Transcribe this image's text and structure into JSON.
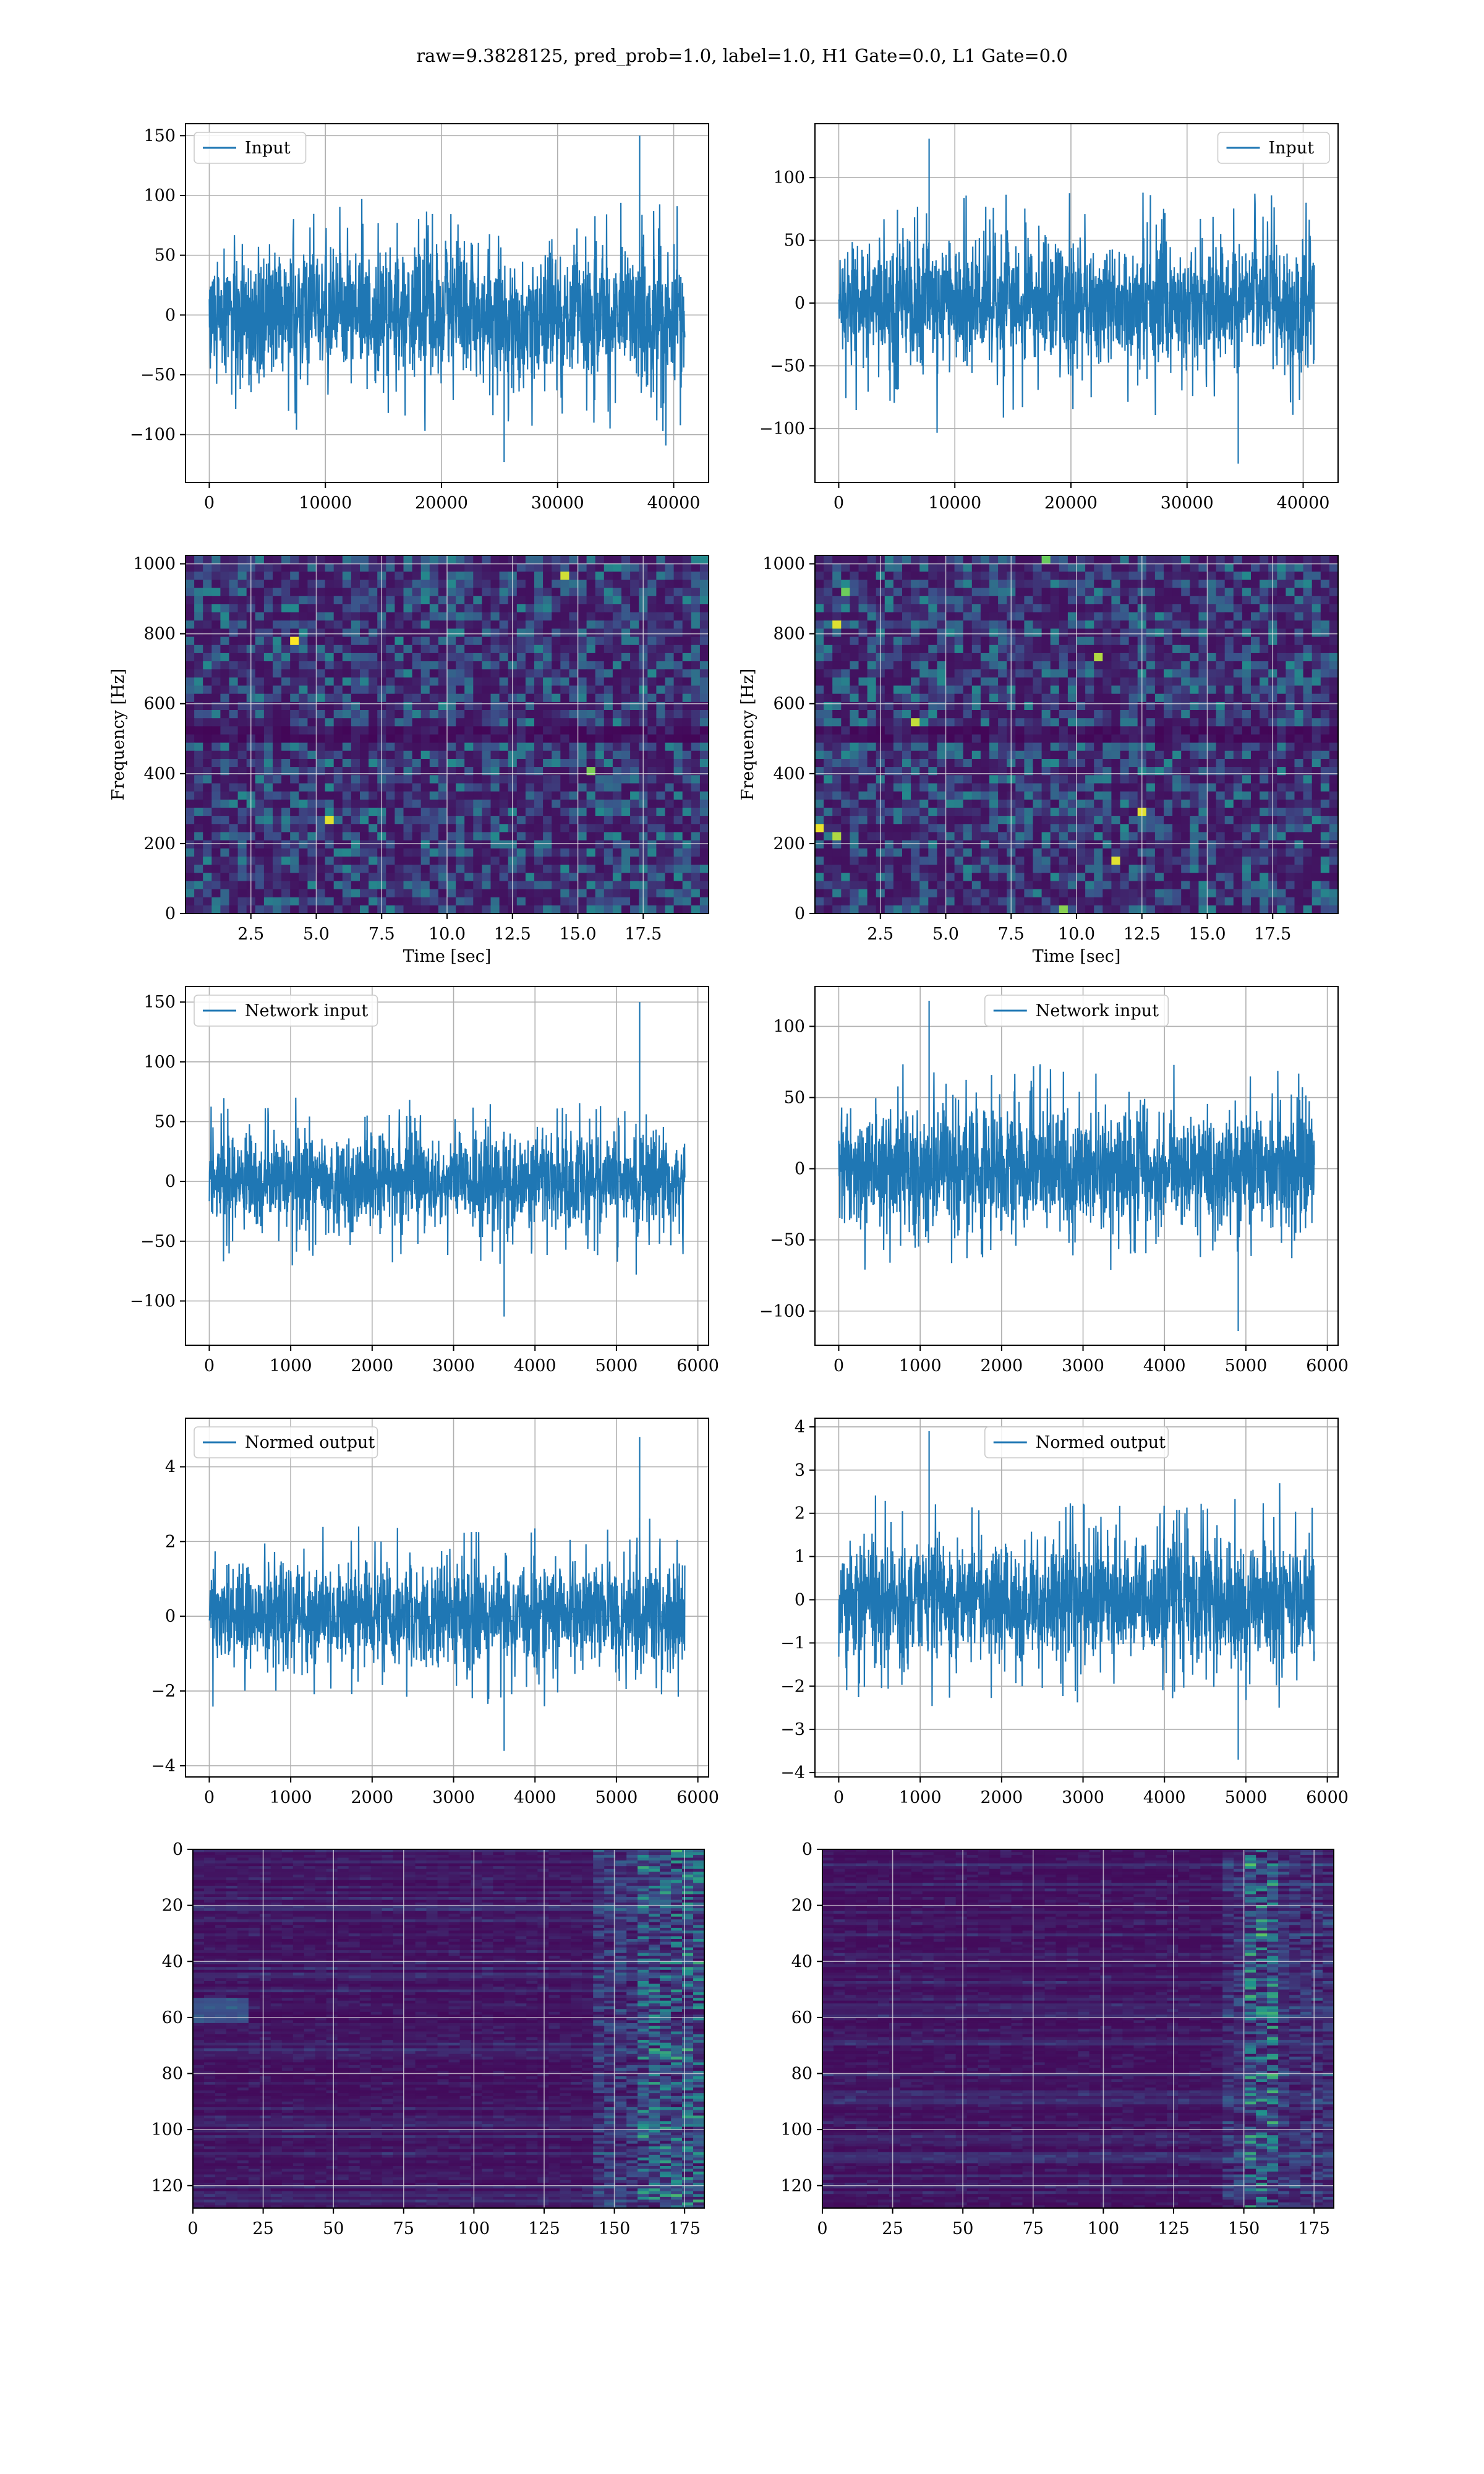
{
  "figure": {
    "title": "raw=9.3828125, pred_prob=1.0, label=1.0, H1 Gate=0.0, L1 Gate=0.0",
    "signal_color": "#1f77b4",
    "grid_color": "#b0b0b0",
    "colormap": "viridis"
  },
  "chart_data": [
    {
      "id": "input-h1",
      "type": "line",
      "series": [
        {
          "name": "Input"
        }
      ],
      "x_range": [
        0,
        40960
      ],
      "amplitude": {
        "typical": 72,
        "negative_max": -123,
        "positive_max": 150
      },
      "xlim": [
        -2048,
        43008
      ],
      "ylim": [
        -140,
        160
      ],
      "xticks": [
        0,
        10000,
        20000,
        30000,
        40000
      ],
      "xtick_labels": [
        "0",
        "10000",
        "20000",
        "30000",
        "40000"
      ],
      "yticks": [
        -100,
        -50,
        0,
        50,
        100,
        150
      ],
      "ytick_labels": [
        "−100",
        "−50",
        "0",
        "50",
        "100",
        "150"
      ],
      "legend": "upper left",
      "grid": true,
      "xlabel": "",
      "ylabel": ""
    },
    {
      "id": "input-l1",
      "type": "line",
      "series": [
        {
          "name": "Input"
        }
      ],
      "x_range": [
        0,
        40960
      ],
      "amplitude": {
        "typical": 68,
        "negative_max": -128,
        "positive_max": 131
      },
      "xlim": [
        -2048,
        43008
      ],
      "ylim": [
        -143,
        143
      ],
      "xticks": [
        0,
        10000,
        20000,
        30000,
        40000
      ],
      "xtick_labels": [
        "0",
        "10000",
        "20000",
        "30000",
        "40000"
      ],
      "yticks": [
        -100,
        -50,
        0,
        50,
        100
      ],
      "ytick_labels": [
        "−100",
        "−50",
        "0",
        "50",
        "100"
      ],
      "legend": "upper right",
      "grid": true,
      "xlabel": "",
      "ylabel": ""
    },
    {
      "id": "spec-h1",
      "type": "heatmap",
      "colormap": "viridis",
      "xlim": [
        0,
        20
      ],
      "ylim": [
        0,
        1024
      ],
      "xticks": [
        2.5,
        5.0,
        7.5,
        10.0,
        12.5,
        15.0,
        17.5
      ],
      "xtick_labels": [
        "2.5",
        "5.0",
        "7.5",
        "10.0",
        "12.5",
        "15.0",
        "17.5"
      ],
      "yticks": [
        0,
        200,
        400,
        600,
        800,
        1000
      ],
      "ytick_labels": [
        "0",
        "200",
        "400",
        "600",
        "800",
        "1000"
      ],
      "xlabel": "Time [sec]",
      "ylabel": "Frequency [Hz]",
      "grid": true
    },
    {
      "id": "spec-l1",
      "type": "heatmap",
      "colormap": "viridis",
      "xlim": [
        0,
        20
      ],
      "ylim": [
        0,
        1024
      ],
      "xticks": [
        2.5,
        5.0,
        7.5,
        10.0,
        12.5,
        15.0,
        17.5
      ],
      "xtick_labels": [
        "2.5",
        "5.0",
        "7.5",
        "10.0",
        "12.5",
        "15.0",
        "17.5"
      ],
      "yticks": [
        0,
        200,
        400,
        600,
        800,
        1000
      ],
      "ytick_labels": [
        "0",
        "200",
        "400",
        "600",
        "800",
        "1000"
      ],
      "xlabel": "Time [sec]",
      "ylabel": "Frequency [Hz]",
      "grid": true
    },
    {
      "id": "netin-h1",
      "type": "line",
      "series": [
        {
          "name": "Network input"
        }
      ],
      "x_range": [
        0,
        5840
      ],
      "amplitude": {
        "typical": 52,
        "negative_max": -113,
        "positive_max": 150
      },
      "xlim": [
        -292,
        6132
      ],
      "ylim": [
        -137,
        163
      ],
      "xticks": [
        0,
        1000,
        2000,
        3000,
        4000,
        5000,
        6000
      ],
      "xtick_labels": [
        "0",
        "1000",
        "2000",
        "3000",
        "4000",
        "5000",
        "6000"
      ],
      "yticks": [
        -100,
        -50,
        0,
        50,
        100,
        150
      ],
      "ytick_labels": [
        "−100",
        "−50",
        "0",
        "50",
        "100",
        "150"
      ],
      "legend": "upper left",
      "grid": true,
      "xlabel": "",
      "ylabel": ""
    },
    {
      "id": "netin-l1",
      "type": "line",
      "series": [
        {
          "name": "Network input"
        }
      ],
      "x_range": [
        0,
        5840
      ],
      "amplitude": {
        "typical": 56,
        "negative_max": -114,
        "positive_max": 118
      },
      "xlim": [
        -292,
        6132
      ],
      "ylim": [
        -124,
        128
      ],
      "xticks": [
        0,
        1000,
        2000,
        3000,
        4000,
        5000,
        6000
      ],
      "xtick_labels": [
        "0",
        "1000",
        "2000",
        "3000",
        "4000",
        "5000",
        "6000"
      ],
      "yticks": [
        -100,
        -50,
        0,
        50,
        100
      ],
      "ytick_labels": [
        "−100",
        "−50",
        "0",
        "50",
        "100"
      ],
      "legend": "upper center",
      "grid": true,
      "xlabel": "",
      "ylabel": ""
    },
    {
      "id": "normed-h1",
      "type": "line",
      "series": [
        {
          "name": "Normed output"
        }
      ],
      "x_range": [
        0,
        5840
      ],
      "amplitude": {
        "typical": 1.8,
        "negative_max": -3.6,
        "positive_max": 4.8
      },
      "xlim": [
        -292,
        6132
      ],
      "ylim": [
        -4.3,
        5.3
      ],
      "xticks": [
        0,
        1000,
        2000,
        3000,
        4000,
        5000,
        6000
      ],
      "xtick_labels": [
        "0",
        "1000",
        "2000",
        "3000",
        "4000",
        "5000",
        "6000"
      ],
      "yticks": [
        -4,
        -2,
        0,
        2,
        4
      ],
      "ytick_labels": [
        "−4",
        "−2",
        "0",
        "2",
        "4"
      ],
      "legend": "upper left",
      "grid": true,
      "xlabel": "",
      "ylabel": ""
    },
    {
      "id": "normed-l1",
      "type": "line",
      "series": [
        {
          "name": "Normed output"
        }
      ],
      "x_range": [
        0,
        5840
      ],
      "amplitude": {
        "typical": 1.9,
        "negative_max": -3.7,
        "positive_max": 3.9
      },
      "xlim": [
        -292,
        6132
      ],
      "ylim": [
        -4.1,
        4.2
      ],
      "xticks": [
        0,
        1000,
        2000,
        3000,
        4000,
        5000,
        6000
      ],
      "xtick_labels": [
        "0",
        "1000",
        "2000",
        "3000",
        "4000",
        "5000",
        "6000"
      ],
      "yticks": [
        -4,
        -3,
        -2,
        -1,
        0,
        1,
        2,
        3,
        4
      ],
      "ytick_labels": [
        "−4",
        "−3",
        "−2",
        "−1",
        "0",
        "1",
        "2",
        "3",
        "4"
      ],
      "legend": "upper center",
      "grid": true,
      "xlabel": "",
      "ylabel": ""
    },
    {
      "id": "feat-h1",
      "type": "heatmap",
      "colormap": "viridis",
      "xlim": [
        0,
        182
      ],
      "ylim": [
        128,
        0
      ],
      "xticks": [
        0,
        25,
        50,
        75,
        100,
        125,
        150,
        175
      ],
      "xtick_labels": [
        "0",
        "25",
        "50",
        "75",
        "100",
        "125",
        "150",
        "175"
      ],
      "yticks": [
        0,
        20,
        40,
        60,
        80,
        100,
        120
      ],
      "ytick_labels": [
        "0",
        "20",
        "40",
        "60",
        "80",
        "100",
        "120"
      ],
      "grid": true,
      "xlabel": "",
      "ylabel": ""
    },
    {
      "id": "feat-l1",
      "type": "heatmap",
      "colormap": "viridis",
      "xlim": [
        0,
        182
      ],
      "ylim": [
        128,
        0
      ],
      "xticks": [
        0,
        25,
        50,
        75,
        100,
        125,
        150,
        175
      ],
      "xtick_labels": [
        "0",
        "25",
        "50",
        "75",
        "100",
        "125",
        "150",
        "175"
      ],
      "yticks": [
        0,
        20,
        40,
        60,
        80,
        100,
        120
      ],
      "ytick_labels": [
        "0",
        "20",
        "40",
        "60",
        "80",
        "100",
        "120"
      ],
      "grid": true,
      "xlabel": "",
      "ylabel": ""
    }
  ]
}
